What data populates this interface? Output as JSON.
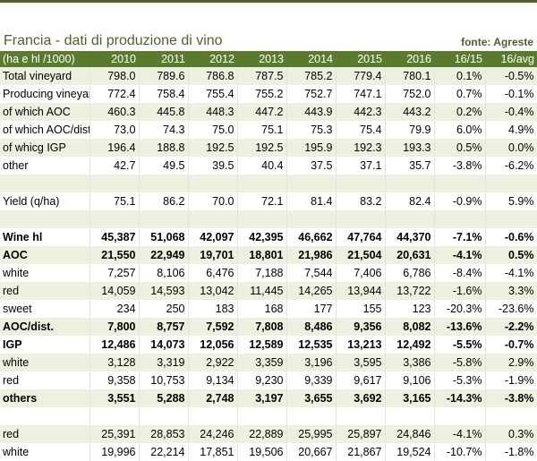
{
  "title": "Francia - dati di produzione di vino",
  "source": "fonte: Agreste",
  "table": {
    "header": [
      "(ha e hl /1000)",
      "2010",
      "2011",
      "2012",
      "2013",
      "2014",
      "2015",
      "2016",
      "16/15",
      "16/avg"
    ],
    "rows": [
      {
        "label": "Total vineyard",
        "cells": [
          "798.0",
          "789.6",
          "786.8",
          "787.5",
          "785.2",
          "779.4",
          "780.1",
          "0.1%",
          "-0.5%"
        ]
      },
      {
        "label": "Producing vineyard",
        "cells": [
          "772.4",
          "758.4",
          "755.4",
          "755.2",
          "752.7",
          "747.1",
          "752.0",
          "0.7%",
          "-0.1%"
        ]
      },
      {
        "label": "of which AOC",
        "cells": [
          "460.3",
          "445.8",
          "448.3",
          "447.2",
          "443.9",
          "442.3",
          "443.2",
          "0.2%",
          "-0.4%"
        ]
      },
      {
        "label": "of which AOC/dist",
        "cells": [
          "73.0",
          "74.3",
          "75.0",
          "75.1",
          "75.3",
          "75.4",
          "79.9",
          "6.0%",
          "4.9%"
        ]
      },
      {
        "label": "of whicg IGP",
        "cells": [
          "196.4",
          "188.8",
          "192.5",
          "192.5",
          "195.9",
          "192.3",
          "193.3",
          "0.5%",
          "0.0%"
        ]
      },
      {
        "label": "other",
        "cells": [
          "42.7",
          "49.5",
          "39.5",
          "40.4",
          "37.5",
          "37.1",
          "35.7",
          "-3.8%",
          "-6.2%"
        ]
      },
      null,
      {
        "label": "Yield (q/ha)",
        "cells": [
          "75.1",
          "86.2",
          "70.0",
          "72.1",
          "81.4",
          "83.2",
          "82.4",
          "-0.9%",
          "5.9%"
        ]
      },
      null,
      {
        "label": "Wine hl",
        "bold": true,
        "cells": [
          "45,387",
          "51,068",
          "42,097",
          "42,395",
          "46,662",
          "47,764",
          "44,370",
          "-7.1%",
          "-0.6%"
        ]
      },
      {
        "label": "AOC",
        "bold": true,
        "cells": [
          "21,550",
          "22,949",
          "19,701",
          "18,801",
          "21,986",
          "21,504",
          "20,631",
          "-4.1%",
          "0.5%"
        ]
      },
      {
        "label": "white",
        "cells": [
          "7,257",
          "8,106",
          "6,476",
          "7,188",
          "7,544",
          "7,406",
          "6,786",
          "-8.4%",
          "-4.1%"
        ]
      },
      {
        "label": "red",
        "cells": [
          "14,059",
          "14,593",
          "13,042",
          "11,445",
          "14,265",
          "13,944",
          "13,722",
          "-1.6%",
          "3.3%"
        ]
      },
      {
        "label": "sweet",
        "cells": [
          "234",
          "250",
          "183",
          "168",
          "177",
          "155",
          "123",
          "-20.3%",
          "-23.6%"
        ]
      },
      {
        "label": "AOC/dist.",
        "bold": true,
        "cells": [
          "7,800",
          "8,757",
          "7,592",
          "7,808",
          "8,486",
          "9,356",
          "8,082",
          "-13.6%",
          "-2.2%"
        ]
      },
      {
        "label": "IGP",
        "bold": true,
        "cells": [
          "12,486",
          "14,073",
          "12,056",
          "12,589",
          "12,535",
          "13,213",
          "12,492",
          "-5.5%",
          "-0.7%"
        ]
      },
      {
        "label": "white",
        "cells": [
          "3,128",
          "3,319",
          "2,922",
          "3,359",
          "3,196",
          "3,595",
          "3,386",
          "-5.8%",
          "2.9%"
        ]
      },
      {
        "label": "red",
        "cells": [
          "9,358",
          "10,753",
          "9,134",
          "9,230",
          "9,339",
          "9,617",
          "9,106",
          "-5.3%",
          "-1.9%"
        ]
      },
      {
        "label": "others",
        "bold": true,
        "cells": [
          "3,551",
          "5,288",
          "2,748",
          "3,197",
          "3,655",
          "3,692",
          "3,165",
          "-14.3%",
          "-3.8%"
        ]
      },
      null,
      {
        "label": "red",
        "cells": [
          "25,391",
          "28,853",
          "24,246",
          "22,889",
          "25,995",
          "25,897",
          "24,846",
          "-4.1%",
          "0.3%"
        ]
      },
      {
        "label": "white",
        "cells": [
          "19,996",
          "22,214",
          "17,851",
          "19,506",
          "20,667",
          "21,867",
          "19,524",
          "-10.7%",
          "-1.8%"
        ]
      }
    ]
  }
}
